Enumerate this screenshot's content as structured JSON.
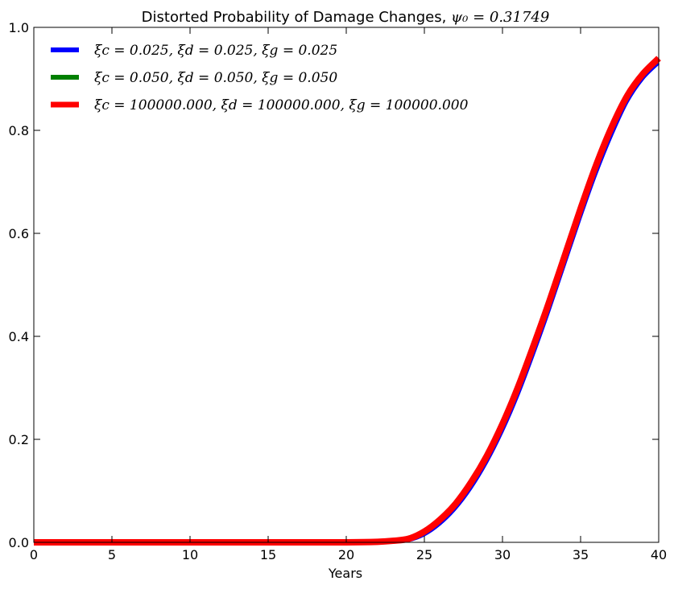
{
  "chart_data": {
    "type": "line",
    "title": "Distorted Probability of Damage Changes, ",
    "title_math": "ψ₀ = 0.31749",
    "xlabel": "Years",
    "ylabel": "",
    "xlim": [
      0,
      40
    ],
    "ylim": [
      0.0,
      1.0
    ],
    "x_ticks": [
      0,
      5,
      10,
      15,
      20,
      25,
      30,
      35,
      40
    ],
    "y_ticks": [
      0.0,
      0.2,
      0.4,
      0.6,
      0.8,
      1.0
    ],
    "x_tick_labels": [
      "0",
      "5",
      "10",
      "15",
      "20",
      "25",
      "30",
      "35",
      "40"
    ],
    "y_tick_labels": [
      "0.0",
      "0.2",
      "0.4",
      "0.6",
      "0.8",
      "1.0"
    ],
    "grid": false,
    "legend_position": "upper-left",
    "x": [
      0,
      5,
      10,
      15,
      20,
      22,
      23,
      24,
      25,
      26,
      27,
      28,
      29,
      30,
      31,
      32,
      33,
      34,
      35,
      36,
      37,
      38,
      39,
      40
    ],
    "series": [
      {
        "name": "ξc = 0.025, ξd = 0.025, ξg = 0.025",
        "color": "#0000ff",
        "values": [
          0,
          0,
          0,
          0,
          0,
          0,
          0.001,
          0.003,
          0.014,
          0.035,
          0.065,
          0.105,
          0.155,
          0.215,
          0.285,
          0.365,
          0.45,
          0.54,
          0.63,
          0.715,
          0.79,
          0.855,
          0.9,
          0.93
        ]
      },
      {
        "name": "ξc = 0.050, ξd = 0.050, ξg = 0.050",
        "color": "#008000",
        "values": [
          0,
          0,
          0,
          0,
          0,
          0.001,
          0.002,
          0.005,
          0.018,
          0.04,
          0.071,
          0.112,
          0.163,
          0.224,
          0.295,
          0.375,
          0.46,
          0.55,
          0.64,
          0.725,
          0.8,
          0.862,
          0.905,
          0.935
        ]
      },
      {
        "name": "ξc = 100000.000, ξd = 100000.000, ξg = 100000.000",
        "color": "#ff0000",
        "values": [
          0,
          0,
          0,
          0,
          0,
          0.001,
          0.003,
          0.007,
          0.021,
          0.044,
          0.075,
          0.117,
          0.168,
          0.23,
          0.302,
          0.383,
          0.468,
          0.558,
          0.648,
          0.733,
          0.807,
          0.868,
          0.91,
          0.94
        ]
      }
    ]
  }
}
